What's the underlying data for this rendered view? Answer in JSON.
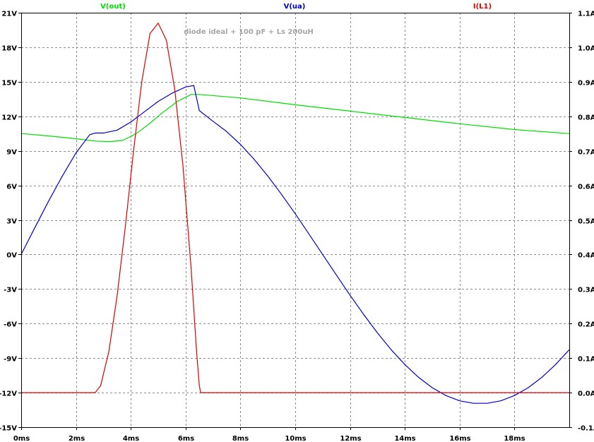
{
  "chart_data": {
    "type": "line",
    "title": "",
    "annotation": "diode ideal + 100 pF + Ls 200uH",
    "xlabel": "",
    "ylabel_left": "",
    "ylabel_right": "",
    "xlim": [
      0,
      20
    ],
    "ylim_left": [
      -15,
      21
    ],
    "ylim_right": [
      -0.1,
      1.1
    ],
    "grid": true,
    "legend_position": "top",
    "x_ticks": [
      "0ms",
      "2ms",
      "4ms",
      "6ms",
      "8ms",
      "10ms",
      "12ms",
      "14ms",
      "16ms",
      "18ms"
    ],
    "x_tick_values": [
      0,
      2,
      4,
      6,
      8,
      10,
      12,
      14,
      16,
      18
    ],
    "y_left_ticks": [
      "21V",
      "18V",
      "15V",
      "12V",
      "9V",
      "6V",
      "3V",
      "0V",
      "-3V",
      "-6V",
      "-9V",
      "-12V",
      "-15V"
    ],
    "y_left_tick_values": [
      21,
      18,
      15,
      12,
      9,
      6,
      3,
      0,
      -3,
      -6,
      -9,
      -12,
      -15
    ],
    "y_right_ticks": [
      "1.1A",
      "1.0A",
      "0.9A",
      "0.8A",
      "0.7A",
      "0.6A",
      "0.5A",
      "0.4A",
      "0.3A",
      "0.2A",
      "0.1A",
      "0.0A",
      "-0.1A"
    ],
    "y_right_tick_values": [
      1.1,
      1.0,
      0.9,
      0.8,
      0.7,
      0.6,
      0.5,
      0.4,
      0.3,
      0.2,
      0.1,
      0.0,
      -0.1
    ],
    "series": [
      {
        "name": "V(out)",
        "axis": "left",
        "color": "#00dd00",
        "x": [
          0,
          1,
          2,
          2.7,
          3.2,
          3.7,
          4.2,
          4.7,
          5.2,
          5.7,
          6.2,
          6.5,
          8,
          10,
          12,
          14,
          16,
          18,
          20
        ],
        "y": [
          10.5,
          10.3,
          10.05,
          9.85,
          9.8,
          9.9,
          10.5,
          11.4,
          12.4,
          13.3,
          13.9,
          13.9,
          13.6,
          13.0,
          12.45,
          11.9,
          11.35,
          10.85,
          10.5
        ]
      },
      {
        "name": "V(ua)",
        "axis": "left",
        "color": "#0000cc",
        "x": [
          0,
          0.5,
          1,
          1.5,
          2,
          2.5,
          2.7,
          3,
          3.5,
          4,
          4.5,
          5,
          5.5,
          6,
          6.3,
          6.5,
          7,
          7.5,
          8,
          8.5,
          9,
          9.5,
          10,
          10.5,
          11,
          11.5,
          12,
          12.5,
          13,
          13.5,
          14,
          14.5,
          15,
          15.5,
          16,
          16.5,
          17,
          17.5,
          18,
          18.5,
          19,
          19.5,
          20
        ],
        "y": [
          0,
          2.34,
          4.64,
          6.81,
          8.82,
          10.4,
          10.55,
          10.55,
          10.8,
          11.5,
          12.4,
          13.3,
          14.0,
          14.55,
          14.68,
          12.5,
          11.57,
          10.67,
          9.56,
          8.27,
          6.81,
          5.22,
          3.54,
          1.78,
          0,
          -1.78,
          -3.54,
          -5.22,
          -6.81,
          -8.27,
          -9.56,
          -10.67,
          -11.57,
          -12.25,
          -12.71,
          -12.93,
          -12.93,
          -12.71,
          -12.25,
          -11.57,
          -10.67,
          -9.56,
          -8.27
        ]
      },
      {
        "name": "I(L1)",
        "axis": "right",
        "color": "#dd0000",
        "x": [
          0,
          2.7,
          2.9,
          3.2,
          3.5,
          3.8,
          4.1,
          4.4,
          4.7,
          5.0,
          5.3,
          5.6,
          5.9,
          6.2,
          6.4,
          6.5,
          6.55,
          20
        ],
        "y": [
          0,
          0,
          0.02,
          0.12,
          0.28,
          0.48,
          0.7,
          0.9,
          1.04,
          1.07,
          1.02,
          0.88,
          0.66,
          0.36,
          0.12,
          0.02,
          0,
          0
        ]
      }
    ]
  }
}
